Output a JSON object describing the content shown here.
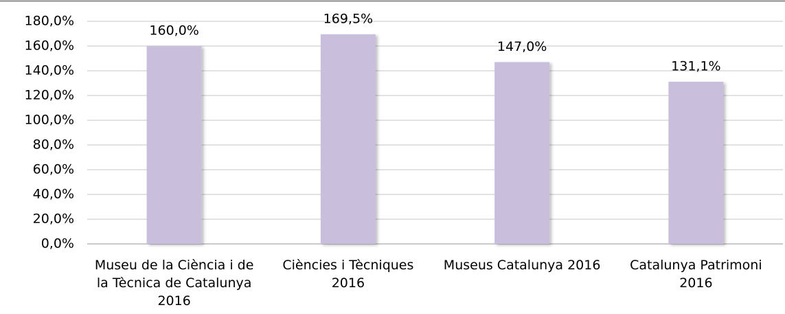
{
  "chart_data": {
    "type": "bar",
    "categories": [
      "Museu de la Ciència i de la Tècnica de Catalunya 2016",
      "Ciències i Tècniques 2016",
      "Museus Catalunya 2016",
      "Catalunya Patrimoni 2016"
    ],
    "values": [
      160,
      169.5,
      147,
      131.1
    ],
    "value_labels": [
      "160,0%",
      "169,5%",
      "147,0%",
      "131,1%"
    ],
    "color": "#c9bfdc",
    "ylim": [
      0,
      180
    ],
    "yticks": [
      {
        "value": 0,
        "label": "0,0%"
      },
      {
        "value": 20,
        "label": "20,0%"
      },
      {
        "value": 40,
        "label": "40,0%"
      },
      {
        "value": 60,
        "label": "60,0%"
      },
      {
        "value": 80,
        "label": "80,0%"
      },
      {
        "value": 100,
        "label": "100,0%"
      },
      {
        "value": 120,
        "label": "120,0%"
      },
      {
        "value": 140,
        "label": "140,0%"
      },
      {
        "value": 160,
        "label": "160,0%"
      },
      {
        "value": 180,
        "label": "180,0%"
      }
    ],
    "grid": true
  }
}
